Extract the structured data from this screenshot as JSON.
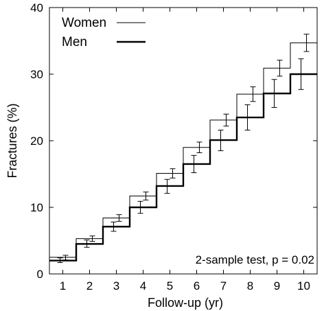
{
  "chart_data": {
    "type": "line",
    "step": true,
    "xlabel": "Follow-up  (yr)",
    "ylabel": "Fractures  (%)",
    "x": [
      1,
      2,
      3,
      4,
      5,
      6,
      7,
      8,
      9,
      10
    ],
    "xlim": [
      0.5,
      10.5
    ],
    "ylim": [
      0,
      40
    ],
    "yticks": [
      0,
      10,
      20,
      30,
      40
    ],
    "series": [
      {
        "name": "Women",
        "line_weight": "thin",
        "values": [
          2.5,
          5.3,
          8.4,
          11.7,
          15.1,
          19.0,
          23.1,
          27.0,
          30.9,
          34.7
        ],
        "error_low": [
          2.1,
          4.9,
          7.9,
          11.1,
          14.4,
          18.2,
          22.2,
          25.9,
          29.7,
          33.4
        ],
        "error_high": [
          2.8,
          5.7,
          8.9,
          12.3,
          15.8,
          19.8,
          24.0,
          28.1,
          32.1,
          36.0
        ]
      },
      {
        "name": "Men",
        "line_weight": "thick",
        "values": [
          2.0,
          4.5,
          7.1,
          10.0,
          13.2,
          16.5,
          20.1,
          23.5,
          27.1,
          30.0
        ],
        "error_low": [
          1.7,
          4.0,
          6.4,
          9.1,
          12.1,
          15.2,
          18.5,
          21.6,
          25.0,
          27.7
        ],
        "error_high": [
          2.4,
          5.1,
          7.8,
          10.9,
          14.2,
          17.8,
          21.6,
          25.4,
          29.2,
          32.3
        ]
      }
    ],
    "legend_position": "top-left",
    "grid": false,
    "annotation": "2-sample test, p = 0.02"
  }
}
